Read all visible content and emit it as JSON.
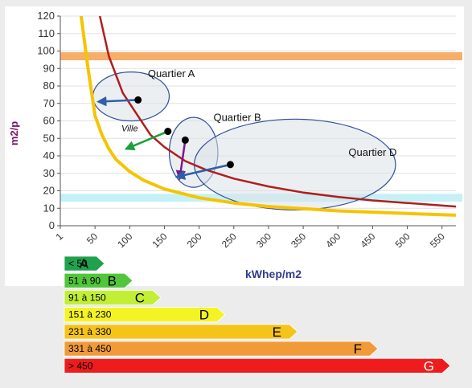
{
  "chart_data": {
    "type": "line",
    "xlabel": "kWhep/m2",
    "ylabel": "m2/p",
    "xlim": [
      0,
      570
    ],
    "ylim": [
      0,
      120
    ],
    "x_ticks": [
      "1",
      "50",
      "100",
      "150",
      "200",
      "250",
      "300",
      "350",
      "400",
      "450",
      "500",
      "550"
    ],
    "y_ticks": [
      "0",
      "10",
      "20",
      "30",
      "40",
      "50",
      "60",
      "70",
      "80",
      "90",
      "100",
      "110",
      "120"
    ],
    "bands": [
      {
        "y": 97,
        "color": "#f5a55a"
      },
      {
        "y": 16,
        "color": "#bff0f5"
      }
    ],
    "series": [
      {
        "color": "#b01e1e",
        "x": [
          57,
          70,
          90,
          110,
          130,
          150,
          180,
          210,
          250,
          300,
          350,
          400,
          450,
          500,
          570
        ],
        "y": [
          120,
          97,
          76,
          64,
          52,
          45,
          37,
          32,
          27,
          22.5,
          19,
          16.5,
          14.5,
          13,
          11
        ]
      },
      {
        "color": "#f5c400",
        "x": [
          30,
          40,
          50,
          60,
          70,
          80,
          100,
          120,
          150,
          200,
          250,
          300,
          400,
          500,
          570
        ],
        "y": [
          120,
          90,
          63,
          52,
          44,
          38,
          31,
          26,
          21,
          16,
          13,
          11,
          8.5,
          7,
          6
        ]
      }
    ],
    "annotations": [
      {
        "text": "Quartier  A",
        "x": 160,
        "y": 85
      },
      {
        "text": "Quartier  B",
        "x": 255,
        "y": 60
      },
      {
        "text": "Quartier D",
        "x": 450,
        "y": 40
      },
      {
        "text": "Ville",
        "x": 100,
        "y": 54
      }
    ],
    "points": [
      {
        "x": 112,
        "y": 72
      },
      {
        "x": 155,
        "y": 54
      },
      {
        "x": 180,
        "y": 49
      },
      {
        "x": 245,
        "y": 35
      }
    ],
    "arrows": [
      {
        "from": [
          112,
          72
        ],
        "to": [
          55,
          71
        ],
        "color": "#2e5fa8"
      },
      {
        "from": [
          155,
          54
        ],
        "to": [
          95,
          44
        ],
        "color": "#1ea03a"
      },
      {
        "from": [
          180,
          49
        ],
        "to": [
          172,
          27
        ],
        "color": "#7a1a8a"
      },
      {
        "from": [
          245,
          35
        ],
        "to": [
          168,
          28
        ],
        "color": "#2e5fa8"
      }
    ],
    "ellipses": [
      {
        "cx": 102,
        "cy": 74,
        "rx": 55,
        "ry": 14
      },
      {
        "cx": 192,
        "cy": 42,
        "rx": 35,
        "ry": 20
      },
      {
        "cx": 338,
        "cy": 35,
        "rx": 145,
        "ry": 26
      }
    ]
  },
  "energy_labels": [
    {
      "range": "< 50",
      "letter": "A",
      "color": "#21a14d"
    },
    {
      "range": "51 à 90",
      "letter": "B",
      "color": "#52c63b"
    },
    {
      "range": "91 à 150",
      "letter": "C",
      "color": "#c2ef35"
    },
    {
      "range": "151 à 230",
      "letter": "D",
      "color": "#f4f425"
    },
    {
      "range": "231 à 330",
      "letter": "E",
      "color": "#f5c419"
    },
    {
      "range": "331 à 450",
      "letter": "F",
      "color": "#f19a38"
    },
    {
      "range": "> 450",
      "letter": "G",
      "color": "#ee1c1c"
    }
  ]
}
